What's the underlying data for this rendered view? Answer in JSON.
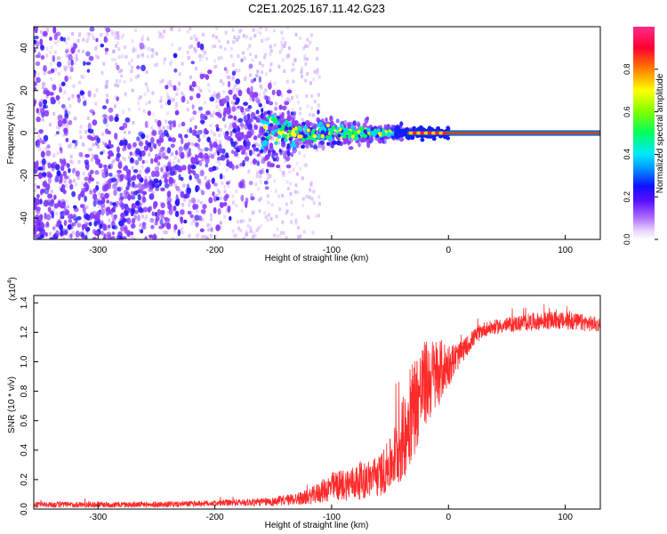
{
  "title": "C2E1.2025.167.11.42.G23",
  "top_panel": {
    "xlabel": "Height of straight line (km)",
    "ylabel": "Frequency (Hz)",
    "colorbar_label": "Normalized spectral amplitude"
  },
  "bottom_panel": {
    "xlabel": "Height of straight line (km)",
    "ylabel": "SNR (10 * v/v)",
    "scale_label": "(x10",
    "scale_exp": "4",
    "scale_close": ")"
  },
  "colors": {
    "snr_line": "#ff2a2a",
    "tone_core": "#ff2020",
    "tone_outer": "#00c060",
    "scatter_primary": "#6a1fd8",
    "scatter_light": "#c9aef0"
  },
  "chart_data": [
    {
      "type": "heatmap",
      "title": "C2E1.2025.167.11.42.G23",
      "xlabel": "Height of straight line (km)",
      "ylabel": "Frequency (Hz)",
      "xlim": [
        -355,
        130
      ],
      "ylim": [
        -50,
        50
      ],
      "x_ticks": [
        -300,
        -200,
        -100,
        0,
        100
      ],
      "y_ticks": [
        -40,
        -20,
        0,
        20,
        40
      ],
      "colorbar": {
        "label": "Normalized spectral amplitude",
        "range": [
          0,
          1
        ],
        "ticks": [
          0.0,
          0.2,
          0.4,
          0.6,
          0.8
        ],
        "colormap": [
          "#ffffff",
          "#cfa8ff",
          "#8a3cff",
          "#2a1cff",
          "#00d8ff",
          "#00ff60",
          "#ffff00",
          "#ff8000",
          "#ff0040",
          "#ff40a0"
        ]
      },
      "tone_line": {
        "frequency_hz": 0,
        "x_from": -35,
        "x_to": 130,
        "amplitude": 1.0
      },
      "features": "Broad purple scatter below about -120 km spreading over the whole -50 to 50 Hz range, converging into a narrow band near 0 Hz between about -180 and -40 km with cyan/green/yellow high-amplitude points near -100 to -40 km, then a single strong red tone at 0 Hz from about -35 km to 130 km."
    },
    {
      "type": "line",
      "xlabel": "Height of straight line (km)",
      "ylabel": "SNR (10 * v/v)",
      "y_scale_factor": "x10^4",
      "xlim": [
        -355,
        130
      ],
      "ylim": [
        0,
        1.45
      ],
      "x_ticks": [
        -300,
        -200,
        -100,
        0,
        100
      ],
      "y_ticks": [
        0.0,
        0.2,
        0.4,
        0.6,
        0.8,
        1.0,
        1.2,
        1.4
      ],
      "series": [
        {
          "x": [
            -355,
            -300,
            -250,
            -200,
            -150,
            -120,
            -100,
            -80,
            -60,
            -50,
            -40,
            -30,
            -20,
            -10,
            0,
            10,
            20,
            30,
            50,
            70,
            90,
            110,
            130
          ],
          "y": [
            0.03,
            0.03,
            0.03,
            0.04,
            0.05,
            0.08,
            0.15,
            0.18,
            0.22,
            0.3,
            0.45,
            0.7,
            0.85,
            0.92,
            0.98,
            1.05,
            1.15,
            1.22,
            1.25,
            1.27,
            1.28,
            1.27,
            1.25
          ],
          "noise": [
            0.02,
            0.02,
            0.02,
            0.02,
            0.03,
            0.05,
            0.1,
            0.12,
            0.14,
            0.18,
            0.28,
            0.35,
            0.3,
            0.25,
            0.15,
            0.08,
            0.06,
            0.05,
            0.05,
            0.06,
            0.06,
            0.06,
            0.05
          ]
        }
      ]
    }
  ]
}
